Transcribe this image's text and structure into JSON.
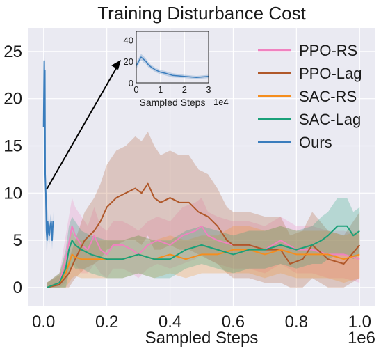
{
  "chart_data": {
    "type": "line",
    "title": "Training Disturbance Cost",
    "xlabel": "Sampled Steps",
    "x_offset_label": "1e6",
    "ylabel": "",
    "xlim": [
      -0.05,
      1.05
    ],
    "ylim": [
      -2,
      27.5
    ],
    "xticks": [
      0.0,
      0.2,
      0.4,
      0.6,
      0.8,
      1.0
    ],
    "xtick_labels": [
      "0.0",
      "0.2",
      "0.4",
      "0.6",
      "0.8",
      "1.0"
    ],
    "yticks": [
      0,
      5,
      10,
      15,
      20,
      25
    ],
    "ytick_labels": [
      "0",
      "5",
      "10",
      "15",
      "20",
      "25"
    ],
    "grid": true,
    "legend_position": "top-right",
    "series": [
      {
        "name": "PPO-RS",
        "color": "#f082c0",
        "x": [
          0.01,
          0.05,
          0.07,
          0.09,
          0.1,
          0.12,
          0.14,
          0.16,
          0.18,
          0.2,
          0.22,
          0.25,
          0.28,
          0.3,
          0.33,
          0.36,
          0.4,
          0.44,
          0.48,
          0.5,
          0.52,
          0.55,
          0.6,
          0.65,
          0.7,
          0.75,
          0.8,
          0.85,
          0.9,
          0.95,
          1.0
        ],
        "y": [
          0.0,
          0.5,
          3.0,
          6.5,
          5.5,
          4.5,
          4.0,
          5.5,
          4.0,
          3.5,
          4.5,
          4.5,
          4.0,
          3.5,
          4.5,
          5.0,
          4.5,
          5.5,
          6.0,
          6.5,
          5.5,
          5.0,
          4.5,
          4.5,
          4.0,
          5.0,
          4.0,
          4.0,
          3.5,
          3.5,
          3.0
        ],
        "band": [
          0.5,
          1.0,
          2.5,
          3.0,
          3.0,
          3.0,
          2.5,
          3.0,
          2.5,
          2.5,
          2.5,
          2.5,
          2.5,
          2.5,
          2.5,
          2.5,
          2.5,
          3.0,
          3.0,
          3.0,
          2.5,
          2.5,
          2.5,
          2.5,
          2.5,
          2.5,
          2.5,
          2.5,
          2.5,
          2.5,
          2.5
        ]
      },
      {
        "name": "PPO-Lag",
        "color": "#b0582a",
        "x": [
          0.01,
          0.05,
          0.08,
          0.1,
          0.13,
          0.16,
          0.18,
          0.2,
          0.23,
          0.26,
          0.29,
          0.31,
          0.33,
          0.35,
          0.37,
          0.4,
          0.43,
          0.46,
          0.49,
          0.52,
          0.55,
          0.58,
          0.6,
          0.65,
          0.7,
          0.75,
          0.78,
          0.82,
          0.85,
          0.9,
          0.95,
          1.0
        ],
        "y": [
          0.0,
          0.3,
          1.5,
          3.0,
          5.0,
          6.0,
          7.0,
          8.5,
          9.5,
          10.0,
          10.5,
          10.0,
          11.0,
          9.5,
          9.0,
          9.5,
          9.0,
          9.0,
          8.0,
          7.5,
          6.5,
          5.0,
          4.5,
          4.5,
          4.0,
          4.0,
          2.5,
          3.0,
          4.5,
          3.0,
          2.5,
          4.5
        ],
        "band": [
          0.5,
          1.0,
          1.5,
          2.0,
          3.0,
          3.5,
          4.0,
          4.5,
          5.0,
          5.0,
          5.5,
          5.5,
          5.5,
          5.5,
          5.0,
          5.0,
          5.0,
          5.0,
          4.5,
          4.5,
          4.0,
          3.5,
          3.5,
          3.5,
          3.5,
          3.5,
          3.0,
          3.0,
          3.5,
          3.0,
          3.0,
          3.5
        ]
      },
      {
        "name": "SAC-RS",
        "color": "#f58e1e",
        "x": [
          0.01,
          0.05,
          0.07,
          0.09,
          0.1,
          0.12,
          0.15,
          0.2,
          0.25,
          0.3,
          0.35,
          0.4,
          0.45,
          0.5,
          0.55,
          0.6,
          0.65,
          0.7,
          0.75,
          0.8,
          0.85,
          0.9,
          0.95,
          1.0
        ],
        "y": [
          0.0,
          0.5,
          1.5,
          3.5,
          3.2,
          3.0,
          3.0,
          3.0,
          3.0,
          3.5,
          3.0,
          3.5,
          3.0,
          3.5,
          3.5,
          4.0,
          4.0,
          3.5,
          4.0,
          3.5,
          3.5,
          3.5,
          3.0,
          3.5
        ],
        "band": [
          0.5,
          1.0,
          2.0,
          2.5,
          2.0,
          2.0,
          2.0,
          2.0,
          2.0,
          2.0,
          2.0,
          2.0,
          2.0,
          2.0,
          2.0,
          2.5,
          2.5,
          2.5,
          2.5,
          2.5,
          2.5,
          2.5,
          2.5,
          2.5
        ]
      },
      {
        "name": "SAC-Lag",
        "color": "#1aa079",
        "x": [
          0.01,
          0.05,
          0.07,
          0.08,
          0.09,
          0.1,
          0.12,
          0.15,
          0.2,
          0.25,
          0.3,
          0.35,
          0.4,
          0.45,
          0.5,
          0.55,
          0.6,
          0.65,
          0.7,
          0.75,
          0.8,
          0.85,
          0.88,
          0.9,
          0.93,
          0.96,
          0.98,
          1.0
        ],
        "y": [
          0.0,
          0.5,
          2.0,
          4.0,
          5.0,
          4.5,
          4.0,
          3.5,
          3.0,
          3.0,
          3.5,
          3.0,
          3.0,
          4.0,
          4.5,
          4.0,
          3.5,
          4.0,
          4.0,
          4.5,
          4.0,
          4.5,
          5.0,
          5.5,
          6.5,
          6.5,
          5.5,
          6.0
        ],
        "band": [
          0.5,
          1.0,
          2.0,
          2.5,
          2.5,
          2.5,
          2.0,
          2.0,
          2.0,
          2.0,
          2.0,
          2.0,
          2.0,
          2.0,
          2.0,
          2.0,
          2.0,
          2.0,
          2.0,
          2.0,
          2.0,
          2.0,
          2.5,
          2.5,
          3.0,
          3.0,
          2.5,
          2.5
        ]
      },
      {
        "name": "Ours",
        "color": "#3a7dbd",
        "x": [
          0.0,
          0.002,
          0.003,
          0.004,
          0.005,
          0.007,
          0.009,
          0.011,
          0.013,
          0.015,
          0.018,
          0.021,
          0.024,
          0.027,
          0.03
        ],
        "y": [
          17.0,
          24.0,
          18.0,
          23.0,
          12.0,
          10.0,
          6.0,
          5.0,
          7.0,
          6.0,
          5.5,
          6.5,
          7.0,
          5.0,
          7.0
        ],
        "band": [
          4.0,
          2.0,
          4.0,
          2.0,
          3.0,
          2.5,
          2.0,
          1.5,
          1.5,
          1.0,
          1.0,
          1.0,
          1.0,
          1.0,
          1.0
        ]
      }
    ],
    "inset": {
      "xlabel": "Sampled Steps",
      "x_offset_label": "1e4",
      "xlim": [
        0,
        3
      ],
      "ylim": [
        0,
        48
      ],
      "xticks": [
        0,
        1,
        2,
        3
      ],
      "xtick_labels": [
        "0",
        "1",
        "2",
        "3"
      ],
      "yticks": [
        0,
        20,
        40
      ],
      "ytick_labels": [
        "0",
        "20",
        "40"
      ],
      "series": {
        "name": "Ours",
        "color": "#3a7dbd",
        "x": [
          0.0,
          0.1,
          0.2,
          0.3,
          0.4,
          0.5,
          0.6,
          0.8,
          1.0,
          1.2,
          1.5,
          2.0,
          2.5,
          3.0
        ],
        "y": [
          16.0,
          20.0,
          24.0,
          22.0,
          20.0,
          17.0,
          15.0,
          12.0,
          10.0,
          9.0,
          7.0,
          6.0,
          5.0,
          6.0
        ],
        "band": [
          3.0,
          3.0,
          3.0,
          3.0,
          2.5,
          2.5,
          2.0,
          2.0,
          2.0,
          2.0,
          2.0,
          1.5,
          1.5,
          1.5
        ]
      }
    }
  }
}
